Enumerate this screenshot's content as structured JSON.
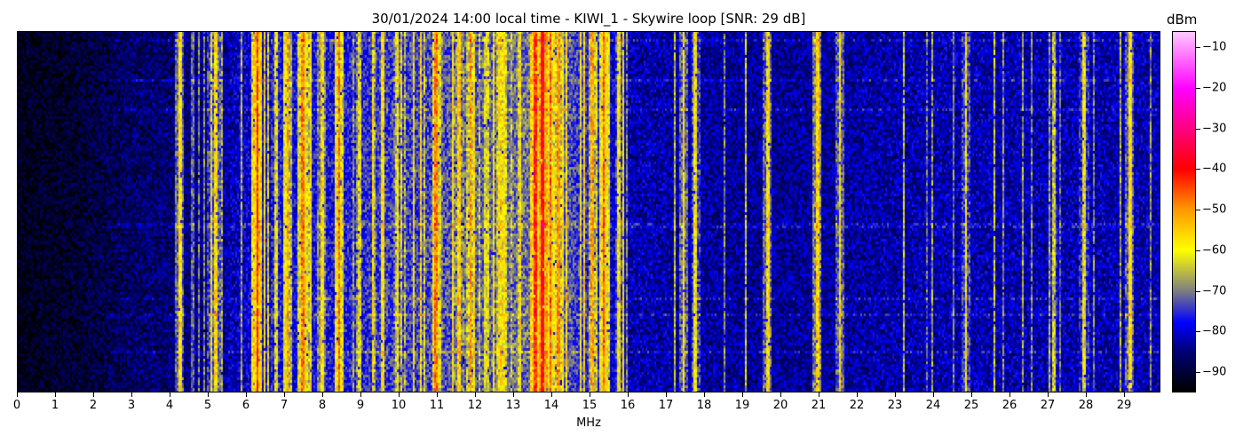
{
  "chart_data": {
    "type": "heatmap",
    "title": "30/01/2024 14:00 local time - KIWI_1 - Skywire loop [SNR: 29 dB]",
    "xlabel": "MHz",
    "xlim": [
      0,
      30
    ],
    "xticks": [
      0,
      1,
      2,
      3,
      4,
      5,
      6,
      7,
      8,
      9,
      10,
      11,
      12,
      13,
      14,
      15,
      16,
      17,
      18,
      19,
      20,
      21,
      22,
      23,
      24,
      25,
      26,
      27,
      28,
      29
    ],
    "colorbar": {
      "label": "dBm",
      "range": [
        -95,
        -6
      ],
      "ticks": [
        -10,
        -20,
        -30,
        -40,
        -50,
        -60,
        -70,
        -80,
        -90
      ],
      "colormap": [
        {
          "dBm": -95,
          "color": "#000000"
        },
        {
          "dBm": -85,
          "color": "#000078"
        },
        {
          "dBm": -78,
          "color": "#0000ff"
        },
        {
          "dBm": -70,
          "color": "#808080"
        },
        {
          "dBm": -60,
          "color": "#ffff00"
        },
        {
          "dBm": -50,
          "color": "#ff9900"
        },
        {
          "dBm": -40,
          "color": "#ff0000"
        },
        {
          "dBm": -30,
          "color": "#ff0080"
        },
        {
          "dBm": -20,
          "color": "#ff00ff"
        },
        {
          "dBm": -6,
          "color": "#ffc8ff"
        }
      ]
    },
    "noise_floor_dBm": [
      {
        "MHz": 0,
        "dBm": -93
      },
      {
        "MHz": 1.5,
        "dBm": -91
      },
      {
        "MHz": 3,
        "dBm": -87
      },
      {
        "MHz": 5,
        "dBm": -85
      },
      {
        "MHz": 6,
        "dBm": -80
      },
      {
        "MHz": 9,
        "dBm": -76
      },
      {
        "MHz": 12,
        "dBm": -72
      },
      {
        "MHz": 14,
        "dBm": -70
      },
      {
        "MHz": 16,
        "dBm": -82
      },
      {
        "MHz": 20,
        "dBm": -84
      },
      {
        "MHz": 24,
        "dBm": -82
      },
      {
        "MHz": 30,
        "dBm": -82
      }
    ],
    "strong_signals": [
      {
        "MHz": 4.28,
        "dBm": -58
      },
      {
        "MHz": 4.62,
        "dBm": -72
      },
      {
        "MHz": 5.1,
        "dBm": -60
      },
      {
        "MHz": 5.22,
        "dBm": -58
      },
      {
        "MHz": 6.32,
        "dBm": -42
      },
      {
        "MHz": 6.8,
        "dBm": -62
      },
      {
        "MHz": 7.1,
        "dBm": -52
      },
      {
        "MHz": 7.5,
        "dBm": -48
      },
      {
        "MHz": 8.0,
        "dBm": -56
      },
      {
        "MHz": 8.45,
        "dBm": -48
      },
      {
        "MHz": 9.0,
        "dBm": -62
      },
      {
        "MHz": 9.6,
        "dBm": -60
      },
      {
        "MHz": 10.0,
        "dBm": -58
      },
      {
        "MHz": 10.4,
        "dBm": -60
      },
      {
        "MHz": 11.0,
        "dBm": -48
      },
      {
        "MHz": 11.6,
        "dBm": -55
      },
      {
        "MHz": 11.9,
        "dBm": -50
      },
      {
        "MHz": 12.3,
        "dBm": -62
      },
      {
        "MHz": 12.7,
        "dBm": -56
      },
      {
        "MHz": 13.2,
        "dBm": -58
      },
      {
        "MHz": 13.6,
        "dBm": -42
      },
      {
        "MHz": 13.8,
        "dBm": -38
      },
      {
        "MHz": 14.0,
        "dBm": -46
      },
      {
        "MHz": 14.2,
        "dBm": -50
      },
      {
        "MHz": 15.1,
        "dBm": -52
      },
      {
        "MHz": 15.4,
        "dBm": -46
      },
      {
        "MHz": 15.8,
        "dBm": -60
      },
      {
        "MHz": 17.5,
        "dBm": -58
      },
      {
        "MHz": 17.8,
        "dBm": -60
      },
      {
        "MHz": 19.7,
        "dBm": -58
      },
      {
        "MHz": 21.0,
        "dBm": -56
      },
      {
        "MHz": 21.6,
        "dBm": -58
      },
      {
        "MHz": 24.9,
        "dBm": -60
      },
      {
        "MHz": 27.2,
        "dBm": -64
      },
      {
        "MHz": 28.0,
        "dBm": -62
      },
      {
        "MHz": 29.2,
        "dBm": -58
      }
    ]
  }
}
